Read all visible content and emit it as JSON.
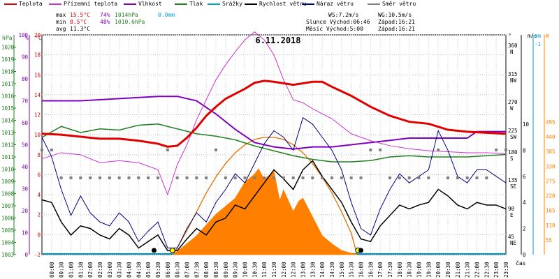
{
  "legend": [
    {
      "label": "Teplota",
      "color": "#e00000"
    },
    {
      "label": "Přízemní teplota",
      "color": "#cc33cc"
    },
    {
      "label": "Vlhkost",
      "color": "#8000c0"
    },
    {
      "label": "Tlak",
      "color": "#208020"
    },
    {
      "label": "Srážky",
      "color": "#00a0d0"
    },
    {
      "label": "Rychlost větru",
      "color": "#000000"
    },
    {
      "label": "Náraz větru",
      "color": "#000080"
    },
    {
      "label": "Směr větru",
      "color": "#808080"
    }
  ],
  "stats": {
    "max_label": "max",
    "max_temp": "15.5°C",
    "max_hum": "74%",
    "max_press": "1014hPa",
    "max_rain": "0.0mm",
    "min_label": "min",
    "min_temp": "8.5°C",
    "min_hum": "48%",
    "min_press": "1010.6hPa",
    "avg_label": "avg",
    "avg_temp": "11.3°C",
    "ws": "WS:7.2m/s",
    "wg": "WG:10.5m/s",
    "sun": "Slunce Východ:06:46",
    "sun_set": "Západ:16:21",
    "moon": "Měsíc  Východ:5:00",
    "moon_set": "Západ:16:21"
  },
  "chart_data": {
    "type": "line",
    "title": "6.11.2018",
    "xlabel": "čas",
    "x_ticks": [
      "00:00",
      "00:30",
      "01:00",
      "01:30",
      "02:00",
      "02:30",
      "03:00",
      "03:30",
      "04:00",
      "04:30",
      "05:00",
      "05:30",
      "06:00",
      "06:30",
      "07:00",
      "07:30",
      "08:00",
      "08:30",
      "09:00",
      "09:30",
      "10:00",
      "10:30",
      "11:00",
      "11:30",
      "12:00",
      "12:30",
      "13:00",
      "13:30",
      "14:00",
      "14:30",
      "15:00",
      "15:30",
      "16:00",
      "16:30",
      "17:00",
      "17:30",
      "18:00",
      "18:30",
      "19:00",
      "19:30",
      "20:00",
      "20:30",
      "21:00",
      "21:30",
      "22:00",
      "22:30",
      "23:00",
      "23:30"
    ],
    "axes": {
      "hpa": {
        "label": "hPa",
        "range": [
          1003,
          1021
        ],
        "ticks": [
          1003,
          1004,
          1005,
          1006,
          1007,
          1008,
          1009,
          1010,
          1011,
          1012,
          1013,
          1014,
          1015,
          1016,
          1017,
          1018,
          1019,
          1020
        ]
      },
      "percent": {
        "label": "%",
        "range": [
          0,
          100
        ],
        "ticks": [
          0,
          10,
          20,
          30,
          40,
          50,
          60,
          70,
          80,
          90,
          100
        ]
      },
      "celsius": {
        "label": "°C",
        "range": [
          -2,
          20
        ],
        "ticks": [
          -2,
          0,
          2,
          4,
          6,
          8,
          10,
          12,
          14,
          16,
          18,
          20
        ]
      },
      "direction": {
        "label": "°",
        "ticks": [
          "360 N",
          "315 NW",
          "270 W",
          "225 SW",
          "180 S",
          "135 SE",
          "90 E",
          "45 NE"
        ]
      },
      "wind": {
        "label": "m/s",
        "ticks": [
          0,
          2,
          4,
          6,
          8,
          10
        ]
      },
      "rain": {
        "label": "mm",
        "ticks": [
          "-1"
        ]
      },
      "solar": {
        "label": "W",
        "ticks": [
          55,
          110,
          165,
          220,
          275,
          330,
          385,
          440,
          495
        ]
      }
    },
    "series": [
      {
        "name": "Teplota",
        "color": "#e00000",
        "hours": [
          0,
          1,
          2,
          3,
          4,
          5,
          6,
          6.5,
          7,
          7.5,
          8,
          8.5,
          9,
          9.5,
          10,
          10.5,
          11,
          11.5,
          12,
          13,
          14,
          14.5,
          15,
          16,
          17,
          18,
          19,
          20,
          21,
          22,
          23,
          24
        ],
        "values": [
          10.1,
          10.0,
          9.8,
          9.6,
          9.6,
          9.4,
          9.1,
          8.8,
          8.9,
          9.7,
          10.7,
          11.9,
          12.8,
          13.6,
          14.1,
          14.6,
          15.2,
          15.4,
          15.3,
          15.0,
          15.3,
          15.3,
          14.8,
          13.9,
          12.8,
          11.9,
          11.3,
          11.1,
          10.5,
          10.3,
          10.2,
          10.1
        ]
      },
      {
        "name": "Přízemní teplota",
        "color": "#cc33cc",
        "hours": [
          0,
          1,
          2,
          3,
          4,
          5,
          6,
          6.5,
          7,
          7.5,
          8,
          8.5,
          9,
          9.5,
          10,
          10.5,
          11,
          11.5,
          12,
          12.5,
          13,
          13.5,
          14,
          15,
          16,
          17,
          18,
          19,
          20,
          21,
          22,
          23,
          24
        ],
        "values": [
          7.6,
          8.2,
          8.0,
          7.2,
          7.4,
          7.2,
          6.5,
          4.0,
          7.0,
          9.0,
          11.5,
          13.5,
          15.5,
          17.0,
          18.3,
          19.5,
          20.3,
          19.5,
          18.0,
          15.5,
          13.5,
          13.2,
          12.6,
          11.6,
          10.1,
          9.4,
          8.9,
          8.6,
          8.4,
          8.3,
          8.2,
          8.2,
          8.1
        ]
      },
      {
        "name": "Vlhkost",
        "color": "#8000c0",
        "hours": [
          0,
          2,
          4,
          6,
          7,
          8,
          9,
          10,
          11,
          12,
          13,
          14,
          15,
          16,
          17,
          18,
          19,
          20,
          21,
          22,
          22.5,
          23,
          24
        ],
        "values": [
          70,
          70,
          71,
          72,
          72,
          70,
          64,
          57,
          51,
          49,
          48,
          49,
          49,
          50,
          51,
          52,
          53,
          53,
          53,
          53,
          56,
          56,
          56
        ]
      },
      {
        "name": "Tlak",
        "color": "#208020",
        "hours": [
          0,
          1,
          2,
          3,
          4,
          5,
          6,
          7,
          8,
          9,
          10,
          11,
          12,
          13,
          14,
          15,
          16,
          17,
          18,
          19,
          20,
          21,
          22,
          23,
          24
        ],
        "values": [
          1012.6,
          1013.5,
          1013.0,
          1013.3,
          1013.2,
          1013.6,
          1013.7,
          1013.3,
          1012.9,
          1012.7,
          1012.4,
          1011.9,
          1011.5,
          1011.1,
          1010.8,
          1010.6,
          1010.6,
          1010.7,
          1011.0,
          1011.1,
          1011.0,
          1011.0,
          1011.0,
          1011.1,
          1011.2
        ]
      },
      {
        "name": "Rychlost větru",
        "color": "#000000",
        "hours": [
          0,
          0.5,
          1,
          1.5,
          2,
          2.5,
          3,
          3.5,
          4,
          4.5,
          5,
          5.5,
          6,
          6.5,
          7,
          7.5,
          8,
          8.5,
          9,
          9.5,
          10,
          10.5,
          11,
          11.5,
          12,
          12.5,
          13,
          13.5,
          14,
          14.5,
          15,
          15.5,
          16,
          16.5,
          17,
          17.5,
          18,
          18.5,
          19,
          19.5,
          20,
          20.5,
          21,
          21.5,
          22,
          22.5,
          23,
          23.5,
          24
        ],
        "values": [
          4.2,
          4.0,
          2.5,
          1.5,
          2.2,
          2.0,
          1.5,
          1.2,
          2.0,
          1.5,
          0.5,
          1.0,
          1.5,
          0.3,
          0.3,
          1.2,
          2.0,
          1.5,
          2.5,
          2.8,
          3.8,
          3.5,
          4.5,
          5.5,
          6.5,
          5.8,
          5.0,
          6.5,
          7.2,
          6.0,
          5.0,
          4.0,
          2.5,
          1.2,
          1.0,
          2.2,
          3.0,
          3.8,
          3.5,
          3.8,
          4.0,
          5.0,
          4.5,
          3.8,
          3.5,
          4.0,
          3.8,
          3.8,
          3.5
        ]
      },
      {
        "name": "Náraz větru",
        "color": "#000080",
        "hours": [
          0,
          0.5,
          1,
          1.5,
          2,
          2.5,
          3,
          3.5,
          4,
          4.5,
          5,
          5.5,
          6,
          6.5,
          7,
          7.5,
          8,
          8.5,
          9,
          9.5,
          10,
          10.5,
          11,
          11.5,
          12,
          12.5,
          13,
          13.5,
          14,
          14.5,
          15,
          15.5,
          16,
          16.5,
          17,
          17.5,
          18,
          18.5,
          19,
          19.5,
          20,
          20.5,
          21,
          21.5,
          22,
          22.5,
          23,
          23.5,
          24
        ],
        "values": [
          9.0,
          7.5,
          5.0,
          3.0,
          4.5,
          3.2,
          2.5,
          2.2,
          3.2,
          2.5,
          1.0,
          1.8,
          2.5,
          0.5,
          0.5,
          2.0,
          3.2,
          2.5,
          4.0,
          5.0,
          6.2,
          5.5,
          7.0,
          8.5,
          9.5,
          9.0,
          8.0,
          10.5,
          10.0,
          9.0,
          8.0,
          6.5,
          4.0,
          2.0,
          1.5,
          3.5,
          5.0,
          6.2,
          5.5,
          6.0,
          6.5,
          9.5,
          8.0,
          6.0,
          5.5,
          6.5,
          6.5,
          6.0,
          5.5
        ]
      },
      {
        "name": "Směr větru",
        "color": "#808080",
        "hours": [
          0,
          0.5,
          1,
          1.5,
          2,
          2.5,
          3,
          3.5,
          4,
          4.5,
          5,
          5.5,
          6,
          6.5,
          7,
          7.5,
          8,
          8.5,
          9,
          9.5,
          10,
          10.5,
          11,
          11.5,
          12,
          12.5,
          13,
          13.5,
          14,
          14.5,
          15,
          15.5,
          16,
          16.5,
          17,
          17.5,
          18,
          18.5,
          19,
          19.5,
          20,
          20.5,
          21,
          21.5,
          22,
          22.5,
          23,
          23.5,
          24
        ],
        "values": [
          180,
          180,
          135,
          135,
          135,
          135,
          135,
          135,
          135,
          135,
          135,
          135,
          135,
          180,
          135,
          135,
          135,
          135,
          180,
          135,
          135,
          135,
          135,
          135,
          135,
          135,
          135,
          135,
          135,
          135,
          135,
          135,
          135,
          135,
          180,
          180,
          135,
          135,
          135,
          135,
          135,
          180,
          135,
          135,
          135,
          135,
          135,
          180,
          180
        ]
      },
      {
        "name": "Sluneční záření",
        "color": "#ff8000",
        "hours": [
          6.8,
          7.5,
          8,
          8.5,
          9,
          9.5,
          10,
          10.5,
          11,
          11.2,
          11.5,
          12,
          12.3,
          12.5,
          13,
          13.3,
          13.5,
          14,
          14.5,
          15,
          15.5,
          16,
          16.3
        ],
        "values": [
          0,
          40,
          70,
          110,
          150,
          180,
          210,
          270,
          300,
          320,
          280,
          310,
          200,
          240,
          160,
          200,
          210,
          140,
          70,
          40,
          15,
          5,
          0
        ]
      },
      {
        "name": "Teoretické sluneční záření",
        "color": "#ff8000",
        "hours": [
          6.8,
          7.5,
          8,
          8.5,
          9,
          9.5,
          10,
          10.5,
          11,
          11.5,
          12,
          12.5,
          13,
          13.5,
          14,
          14.5,
          15,
          15.5,
          16,
          16.3
        ],
        "values": [
          0,
          90,
          160,
          230,
          290,
          340,
          380,
          410,
          430,
          438,
          438,
          430,
          410,
          380,
          340,
          290,
          230,
          160,
          80,
          0
        ]
      }
    ]
  }
}
